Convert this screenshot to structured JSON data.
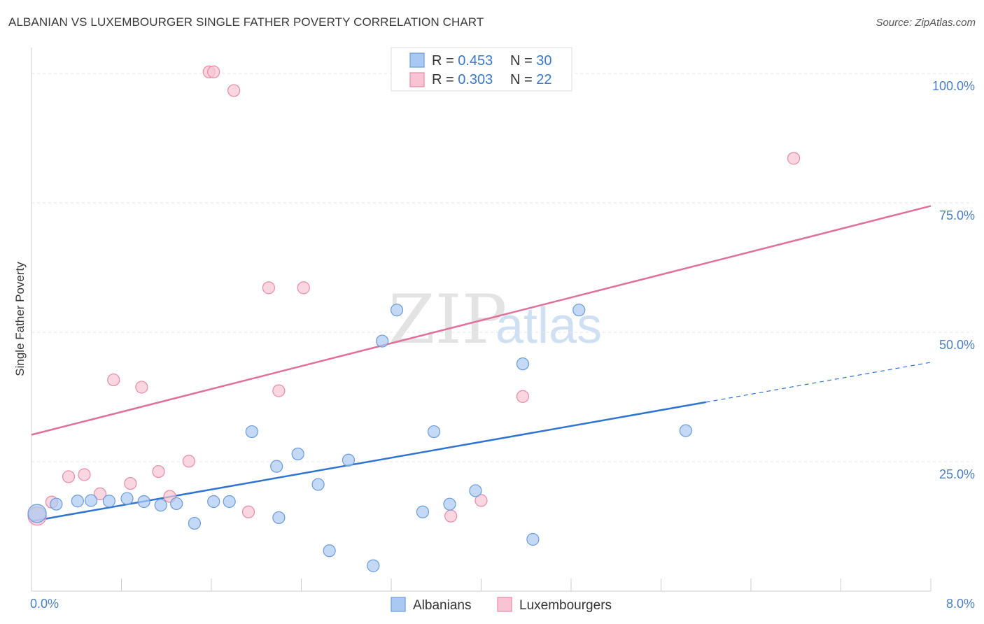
{
  "title": "ALBANIAN VS LUXEMBOURGER SINGLE FATHER POVERTY CORRELATION CHART",
  "source": "Source: ZipAtlas.com",
  "watermark": {
    "zip": "ZIP",
    "atlas": "atlas"
  },
  "colors": {
    "albanians_fill": "#a9c9f2",
    "albanians_stroke": "#6b9bd9",
    "albanians_line": "#2f74d0",
    "luxembourgers_fill": "#f8c4d3",
    "luxembourgers_stroke": "#e88aa7",
    "luxembourgers_line": "#e0709a",
    "tick_label": "#4a7fc1",
    "grid": "#e4e4e4"
  },
  "legend": {
    "rows": [
      {
        "r_label": "R = ",
        "r_value": "0.453",
        "n_label": "N = ",
        "n_value": "30"
      },
      {
        "r_label": "R = ",
        "r_value": "0.303",
        "n_label": "N = ",
        "n_value": "22"
      }
    ]
  },
  "chart_data": {
    "type": "scatter",
    "title": "ALBANIAN VS LUXEMBOURGER SINGLE FATHER POVERTY CORRELATION CHART",
    "xlabel": "",
    "ylabel": "Single Father Poverty",
    "xlim": [
      0,
      8
    ],
    "ylim": [
      0,
      105
    ],
    "x_ticks": [
      {
        "value": 0,
        "label": "0.0%"
      },
      {
        "value": 8,
        "label": "8.0%"
      }
    ],
    "y_ticks": [
      {
        "value": 25,
        "label": "25.0%"
      },
      {
        "value": 50,
        "label": "50.0%"
      },
      {
        "value": 75,
        "label": "75.0%"
      },
      {
        "value": 100,
        "label": "100.0%"
      }
    ],
    "grid": true,
    "legend_position": "top-center",
    "series": [
      {
        "name": "Albanians",
        "r": 0.453,
        "n": 30,
        "trend": {
          "x0": 0,
          "y0": 13.5,
          "x1": 6.0,
          "y1": 36.5,
          "dash_x1": 8.0,
          "dash_y1": 44.2
        },
        "points": [
          {
            "x": 0.05,
            "y": 15.0,
            "size": 26
          },
          {
            "x": 0.22,
            "y": 16.8,
            "size": 17
          },
          {
            "x": 0.41,
            "y": 17.4,
            "size": 17
          },
          {
            "x": 0.53,
            "y": 17.5,
            "size": 17
          },
          {
            "x": 0.69,
            "y": 17.4,
            "size": 17
          },
          {
            "x": 0.85,
            "y": 17.9,
            "size": 17
          },
          {
            "x": 1.0,
            "y": 17.3,
            "size": 17
          },
          {
            "x": 1.15,
            "y": 16.6,
            "size": 17
          },
          {
            "x": 1.29,
            "y": 16.9,
            "size": 17
          },
          {
            "x": 1.45,
            "y": 13.1,
            "size": 17
          },
          {
            "x": 1.62,
            "y": 17.3,
            "size": 17
          },
          {
            "x": 1.76,
            "y": 17.3,
            "size": 17
          },
          {
            "x": 1.96,
            "y": 30.8,
            "size": 17
          },
          {
            "x": 2.18,
            "y": 24.1,
            "size": 17
          },
          {
            "x": 2.2,
            "y": 14.2,
            "size": 17
          },
          {
            "x": 2.37,
            "y": 26.5,
            "size": 17
          },
          {
            "x": 2.55,
            "y": 20.6,
            "size": 17
          },
          {
            "x": 2.65,
            "y": 7.8,
            "size": 17
          },
          {
            "x": 2.82,
            "y": 25.3,
            "size": 17
          },
          {
            "x": 3.04,
            "y": 4.9,
            "size": 17
          },
          {
            "x": 3.12,
            "y": 48.3,
            "size": 17
          },
          {
            "x": 3.25,
            "y": 54.3,
            "size": 17
          },
          {
            "x": 3.48,
            "y": 15.3,
            "size": 17
          },
          {
            "x": 3.58,
            "y": 30.8,
            "size": 17
          },
          {
            "x": 3.72,
            "y": 16.8,
            "size": 17
          },
          {
            "x": 3.95,
            "y": 19.4,
            "size": 17
          },
          {
            "x": 4.37,
            "y": 43.9,
            "size": 17
          },
          {
            "x": 4.46,
            "y": 10.0,
            "size": 17
          },
          {
            "x": 4.87,
            "y": 54.3,
            "size": 17
          },
          {
            "x": 5.82,
            "y": 31.0,
            "size": 17
          }
        ]
      },
      {
        "name": "Luxembourgers",
        "r": 0.303,
        "n": 22,
        "trend": {
          "x0": 0,
          "y0": 30.2,
          "x1": 8.0,
          "y1": 74.4
        },
        "points": [
          {
            "x": 0.05,
            "y": 14.5,
            "size": 26
          },
          {
            "x": 0.18,
            "y": 17.2,
            "size": 17
          },
          {
            "x": 0.33,
            "y": 22.1,
            "size": 17
          },
          {
            "x": 0.47,
            "y": 22.5,
            "size": 17
          },
          {
            "x": 0.61,
            "y": 18.8,
            "size": 17
          },
          {
            "x": 0.73,
            "y": 40.8,
            "size": 17
          },
          {
            "x": 0.88,
            "y": 20.8,
            "size": 17
          },
          {
            "x": 0.98,
            "y": 39.4,
            "size": 17
          },
          {
            "x": 1.13,
            "y": 23.1,
            "size": 17
          },
          {
            "x": 1.23,
            "y": 18.3,
            "size": 17
          },
          {
            "x": 1.4,
            "y": 25.1,
            "size": 17
          },
          {
            "x": 1.58,
            "y": 100.3,
            "size": 17
          },
          {
            "x": 1.62,
            "y": 100.3,
            "size": 17
          },
          {
            "x": 1.8,
            "y": 96.7,
            "size": 17
          },
          {
            "x": 1.93,
            "y": 15.3,
            "size": 17
          },
          {
            "x": 2.11,
            "y": 58.6,
            "size": 17
          },
          {
            "x": 2.2,
            "y": 38.7,
            "size": 17
          },
          {
            "x": 2.42,
            "y": 58.6,
            "size": 17
          },
          {
            "x": 3.73,
            "y": 14.5,
            "size": 17
          },
          {
            "x": 4.0,
            "y": 17.5,
            "size": 17
          },
          {
            "x": 4.37,
            "y": 37.6,
            "size": 17
          },
          {
            "x": 6.78,
            "y": 83.6,
            "size": 17
          }
        ]
      }
    ]
  }
}
